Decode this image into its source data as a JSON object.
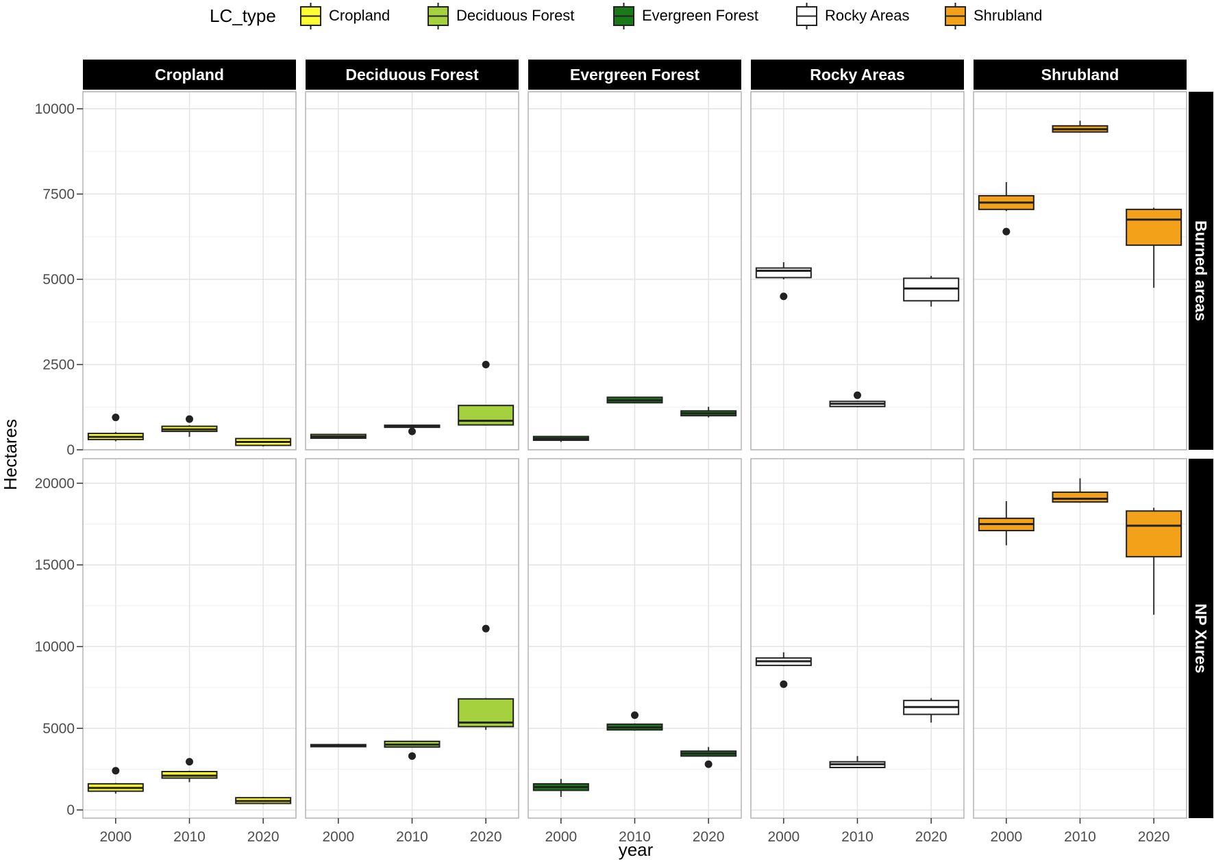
{
  "chart_data": {
    "type": "boxplot",
    "xlabel": "year",
    "ylabel": "Hectares",
    "x_categories": [
      "2000",
      "2010",
      "2020"
    ],
    "legend": {
      "title": "LC_type",
      "position": "top",
      "entries": [
        {
          "name": "Cropland",
          "color": "#ffff33"
        },
        {
          "name": "Deciduous Forest",
          "color": "#a6d13e"
        },
        {
          "name": "Evergreen Forest",
          "color": "#1a7a1a"
        },
        {
          "name": "Rocky Areas",
          "color": "#ffffff"
        },
        {
          "name": "Shrubland",
          "color": "#f4a11a"
        }
      ]
    },
    "facet_columns": [
      "Cropland",
      "Deciduous Forest",
      "Evergreen Forest",
      "Rocky Areas",
      "Shrubland"
    ],
    "facet_rows": [
      {
        "label": "Burned areas",
        "ylim": [
          0,
          10500
        ],
        "yticks": [
          "0",
          "2500",
          "5000",
          "7500",
          "10000"
        ],
        "ytick_values": [
          0,
          2500,
          5000,
          7500,
          10000
        ],
        "panels": [
          {
            "type": "Cropland",
            "boxes": [
              {
                "year": "2000",
                "min": 250,
                "q1": 300,
                "median": 380,
                "q3": 480,
                "max": 520,
                "outliers": [
                  950
                ]
              },
              {
                "year": "2010",
                "min": 380,
                "q1": 540,
                "median": 600,
                "q3": 690,
                "max": 720,
                "outliers": [
                  900
                ]
              },
              {
                "year": "2020",
                "min": 100,
                "q1": 130,
                "median": 230,
                "q3": 330,
                "max": 350,
                "outliers": []
              }
            ]
          },
          {
            "type": "Deciduous Forest",
            "boxes": [
              {
                "year": "2000",
                "min": 320,
                "q1": 340,
                "median": 390,
                "q3": 450,
                "max": 470,
                "outliers": []
              },
              {
                "year": "2010",
                "min": 680,
                "q1": 690,
                "median": 700,
                "q3": 720,
                "max": 730,
                "outliers": [
                  540
                ]
              },
              {
                "year": "2020",
                "min": 720,
                "q1": 730,
                "median": 850,
                "q3": 1300,
                "max": 1310,
                "outliers": [
                  2500
                ]
              }
            ]
          },
          {
            "type": "Evergreen Forest",
            "boxes": [
              {
                "year": "2000",
                "min": 230,
                "q1": 280,
                "median": 330,
                "q3": 390,
                "max": 410,
                "outliers": []
              },
              {
                "year": "2010",
                "min": 1370,
                "q1": 1380,
                "median": 1450,
                "q3": 1540,
                "max": 1560,
                "outliers": []
              },
              {
                "year": "2020",
                "min": 950,
                "q1": 1000,
                "median": 1070,
                "q3": 1140,
                "max": 1260,
                "outliers": []
              }
            ]
          },
          {
            "type": "Rocky Areas",
            "boxes": [
              {
                "year": "2000",
                "min": 5000,
                "q1": 5050,
                "median": 5250,
                "q3": 5330,
                "max": 5500,
                "outliers": [
                  4500
                ]
              },
              {
                "year": "2010",
                "min": 1250,
                "q1": 1270,
                "median": 1350,
                "q3": 1420,
                "max": 1440,
                "outliers": [
                  1600
                ]
              },
              {
                "year": "2020",
                "min": 4200,
                "q1": 4370,
                "median": 4730,
                "q3": 5030,
                "max": 5100,
                "outliers": []
              }
            ]
          },
          {
            "type": "Shrubland",
            "boxes": [
              {
                "year": "2000",
                "min": 7000,
                "q1": 7050,
                "median": 7250,
                "q3": 7450,
                "max": 7850,
                "outliers": [
                  6400
                ]
              },
              {
                "year": "2010",
                "min": 9300,
                "q1": 9320,
                "median": 9400,
                "q3": 9500,
                "max": 9650,
                "outliers": []
              },
              {
                "year": "2020",
                "min": 4750,
                "q1": 6000,
                "median": 6750,
                "q3": 7050,
                "max": 7100,
                "outliers": []
              }
            ]
          }
        ]
      },
      {
        "label": "NP Xures",
        "ylim": [
          -500,
          21500
        ],
        "yticks": [
          "0",
          "5000",
          "10000",
          "15000",
          "20000"
        ],
        "ytick_values": [
          0,
          5000,
          10000,
          15000,
          20000
        ],
        "panels": [
          {
            "type": "Cropland",
            "boxes": [
              {
                "year": "2000",
                "min": 1000,
                "q1": 1150,
                "median": 1350,
                "q3": 1600,
                "max": 1650,
                "outliers": [
                  2400
                ]
              },
              {
                "year": "2010",
                "min": 1700,
                "q1": 1950,
                "median": 2100,
                "q3": 2350,
                "max": 2400,
                "outliers": [
                  2950
                ]
              },
              {
                "year": "2020",
                "min": 350,
                "q1": 400,
                "median": 550,
                "q3": 750,
                "max": 800,
                "outliers": []
              }
            ]
          },
          {
            "type": "Deciduous Forest",
            "boxes": [
              {
                "year": "2000",
                "min": 3900,
                "q1": 3920,
                "median": 3950,
                "q3": 4000,
                "max": 4050,
                "outliers": []
              },
              {
                "year": "2010",
                "min": 3850,
                "q1": 3850,
                "median": 4000,
                "q3": 4200,
                "max": 4200,
                "outliers": [
                  3300
                ]
              },
              {
                "year": "2020",
                "min": 4900,
                "q1": 5100,
                "median": 5350,
                "q3": 6800,
                "max": 6850,
                "outliers": [
                  11100
                ]
              }
            ]
          },
          {
            "type": "Evergreen Forest",
            "boxes": [
              {
                "year": "2000",
                "min": 800,
                "q1": 1200,
                "median": 1400,
                "q3": 1600,
                "max": 1900,
                "outliers": []
              },
              {
                "year": "2010",
                "min": 4850,
                "q1": 4900,
                "median": 5050,
                "q3": 5250,
                "max": 5300,
                "outliers": [
                  5800
                ]
              },
              {
                "year": "2020",
                "min": 3300,
                "q1": 3300,
                "median": 3450,
                "q3": 3600,
                "max": 3850,
                "outliers": [
                  2800
                ]
              }
            ]
          },
          {
            "type": "Rocky Areas",
            "boxes": [
              {
                "year": "2000",
                "min": 8800,
                "q1": 8850,
                "median": 9100,
                "q3": 9300,
                "max": 9650,
                "outliers": [
                  7700
                ]
              },
              {
                "year": "2010",
                "min": 2600,
                "q1": 2600,
                "median": 2800,
                "q3": 2950,
                "max": 3300,
                "outliers": []
              },
              {
                "year": "2020",
                "min": 5350,
                "q1": 5850,
                "median": 6300,
                "q3": 6700,
                "max": 6850,
                "outliers": []
              }
            ]
          },
          {
            "type": "Shrubland",
            "boxes": [
              {
                "year": "2000",
                "min": 16200,
                "q1": 17100,
                "median": 17500,
                "q3": 17850,
                "max": 18900,
                "outliers": []
              },
              {
                "year": "2010",
                "min": 18800,
                "q1": 18850,
                "median": 19050,
                "q3": 19450,
                "max": 20300,
                "outliers": []
              },
              {
                "year": "2020",
                "min": 11950,
                "q1": 15500,
                "median": 17400,
                "q3": 18300,
                "max": 18500,
                "outliers": []
              }
            ]
          }
        ]
      }
    ]
  }
}
